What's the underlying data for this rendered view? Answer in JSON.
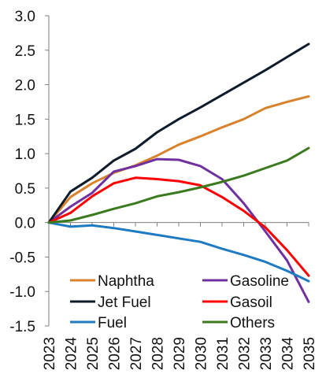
{
  "chart_data": {
    "type": "line",
    "categories": [
      "2023",
      "2024",
      "2025",
      "2026",
      "2027",
      "2028",
      "2029",
      "2030",
      "2031",
      "2032",
      "2033",
      "2034",
      "2035"
    ],
    "ylim": [
      -1.5,
      3.0
    ],
    "yticks": [
      "3.0",
      "2.5",
      "2.0",
      "1.5",
      "1.0",
      "0.5",
      "0.0",
      "-0.5",
      "-1.0",
      "-1.5"
    ],
    "ytick_values": [
      3.0,
      2.5,
      2.0,
      1.5,
      1.0,
      0.5,
      0.0,
      -0.5,
      -1.0,
      -1.5
    ],
    "grid": false,
    "legend_position": "bottom-inside",
    "series": [
      {
        "name": "Naphtha",
        "color": "#D9822B",
        "values": [
          0,
          0.37,
          0.57,
          0.72,
          0.83,
          0.97,
          1.13,
          1.25,
          1.38,
          1.5,
          1.66,
          1.75,
          1.83
        ]
      },
      {
        "name": "Gasoline",
        "color": "#7030A0",
        "values": [
          0,
          0.23,
          0.43,
          0.74,
          0.82,
          0.92,
          0.91,
          0.82,
          0.63,
          0.28,
          -0.13,
          -0.55,
          -1.15
        ]
      },
      {
        "name": "Jet Fuel",
        "color": "#0D1B2A",
        "values": [
          0,
          0.45,
          0.65,
          0.9,
          1.07,
          1.31,
          1.5,
          1.67,
          1.85,
          2.03,
          2.21,
          2.4,
          2.59
        ]
      },
      {
        "name": "Gasoil",
        "color": "#FF0000",
        "values": [
          0,
          0.14,
          0.38,
          0.57,
          0.65,
          0.63,
          0.6,
          0.54,
          0.37,
          0.17,
          -0.07,
          -0.4,
          -0.77
        ]
      },
      {
        "name": "Fuel",
        "color": "#1F7BC1",
        "values": [
          0,
          -0.06,
          -0.04,
          -0.08,
          -0.13,
          -0.18,
          -0.23,
          -0.28,
          -0.38,
          -0.47,
          -0.57,
          -0.7,
          -0.85
        ]
      },
      {
        "name": "Others",
        "color": "#3B7A1E",
        "values": [
          0,
          0.03,
          0.11,
          0.2,
          0.28,
          0.38,
          0.44,
          0.51,
          0.59,
          0.68,
          0.79,
          0.9,
          1.08
        ]
      }
    ],
    "legend_order": [
      "Naphtha",
      "Gasoline",
      "Jet Fuel",
      "Gasoil",
      "Fuel",
      "Others"
    ]
  }
}
